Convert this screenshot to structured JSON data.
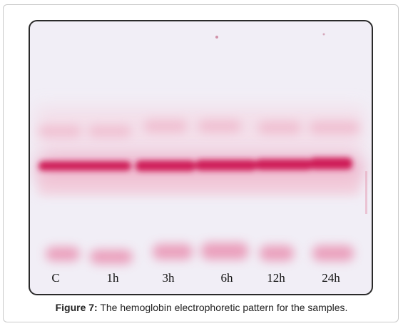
{
  "figure": {
    "caption_label": "Figure 7:",
    "caption_text": " The hemoglobin electrophoretic pattern for the samples."
  },
  "lanes": [
    {
      "label": "C"
    },
    {
      "label": "1h"
    },
    {
      "label": "3h"
    },
    {
      "label": "6h"
    },
    {
      "label": "12h"
    },
    {
      "label": "24h"
    }
  ],
  "colors": {
    "band_main": "#d4215a",
    "band_faint": "#ef9fbd",
    "gel_background": "#f1eef6",
    "frame": "#2a2a2a"
  }
}
